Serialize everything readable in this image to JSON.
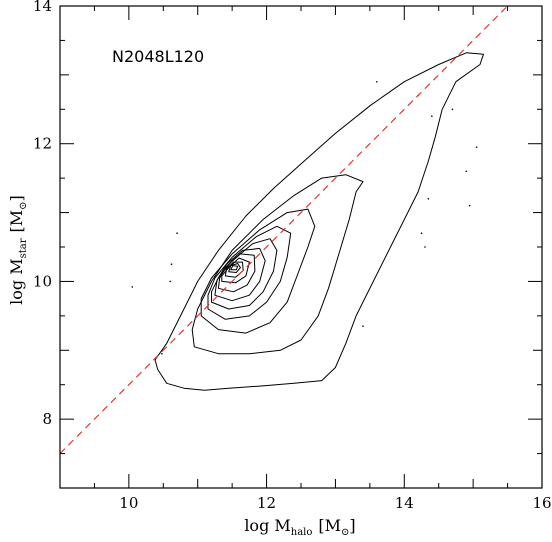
{
  "chart_data": {
    "type": "contour",
    "annotation": "N2048L120",
    "xlabel": {
      "main": "log M",
      "sub": "halo",
      "unit": "[M",
      "unit_sub": "⊙",
      "unit_close": "]"
    },
    "ylabel": {
      "main": "log M",
      "sub": "star",
      "unit": "[M",
      "unit_sub": "⊙",
      "unit_close": "]"
    },
    "xlim": [
      9,
      16
    ],
    "ylim": [
      7,
      14
    ],
    "xticks": [
      10,
      12,
      14,
      16
    ],
    "yticks": [
      8,
      10,
      12,
      14
    ],
    "x_minor_step": 0.5,
    "y_minor_step": 0.5,
    "reference_line": {
      "slope": 1,
      "intercept": -1.5,
      "style": "dashed",
      "color": "#e8322a"
    },
    "contours": [
      {
        "level": 1,
        "points": [
          [
            10.38,
            8.86
          ],
          [
            10.42,
            8.72
          ],
          [
            10.55,
            8.52
          ],
          [
            10.8,
            8.45
          ],
          [
            11.1,
            8.42
          ],
          [
            11.45,
            8.45
          ],
          [
            11.9,
            8.48
          ],
          [
            12.4,
            8.52
          ],
          [
            12.8,
            8.56
          ],
          [
            13.0,
            8.75
          ],
          [
            13.15,
            9.1
          ],
          [
            13.3,
            9.5
          ],
          [
            13.55,
            10.0
          ],
          [
            13.8,
            10.5
          ],
          [
            14.0,
            10.9
          ],
          [
            14.2,
            11.3
          ],
          [
            14.35,
            11.75
          ],
          [
            14.45,
            12.1
          ],
          [
            14.55,
            12.5
          ],
          [
            14.75,
            12.9
          ],
          [
            15.1,
            13.15
          ],
          [
            15.15,
            13.3
          ],
          [
            14.9,
            13.32
          ],
          [
            14.5,
            13.15
          ],
          [
            14.0,
            12.9
          ],
          [
            13.5,
            12.55
          ],
          [
            13.0,
            12.15
          ],
          [
            12.55,
            11.75
          ],
          [
            12.1,
            11.35
          ],
          [
            11.7,
            10.95
          ],
          [
            11.3,
            10.45
          ],
          [
            11.0,
            10.0
          ],
          [
            10.75,
            9.5
          ],
          [
            10.55,
            9.1
          ],
          [
            10.38,
            8.86
          ]
        ]
      },
      {
        "level": 2,
        "points": [
          [
            10.95,
            9.05
          ],
          [
            11.3,
            8.95
          ],
          [
            11.75,
            8.95
          ],
          [
            12.2,
            9.0
          ],
          [
            12.5,
            9.15
          ],
          [
            12.75,
            9.5
          ],
          [
            12.9,
            9.9
          ],
          [
            13.05,
            10.4
          ],
          [
            13.2,
            10.9
          ],
          [
            13.3,
            11.3
          ],
          [
            13.4,
            11.45
          ],
          [
            13.15,
            11.55
          ],
          [
            12.8,
            11.5
          ],
          [
            12.4,
            11.25
          ],
          [
            11.95,
            10.9
          ],
          [
            11.5,
            10.45
          ],
          [
            11.2,
            10.0
          ],
          [
            11.0,
            9.6
          ],
          [
            10.92,
            9.3
          ],
          [
            10.95,
            9.05
          ]
        ]
      },
      {
        "level": 3,
        "points": [
          [
            11.05,
            9.5
          ],
          [
            11.3,
            9.3
          ],
          [
            11.7,
            9.25
          ],
          [
            12.05,
            9.4
          ],
          [
            12.3,
            9.7
          ],
          [
            12.45,
            10.1
          ],
          [
            12.6,
            10.5
          ],
          [
            12.7,
            10.8
          ],
          [
            12.6,
            11.05
          ],
          [
            12.3,
            11.0
          ],
          [
            11.9,
            10.75
          ],
          [
            11.5,
            10.4
          ],
          [
            11.2,
            10.05
          ],
          [
            11.05,
            9.75
          ],
          [
            11.05,
            9.5
          ]
        ]
      },
      {
        "level": 4,
        "points": [
          [
            11.15,
            9.6
          ],
          [
            11.4,
            9.45
          ],
          [
            11.75,
            9.5
          ],
          [
            12.0,
            9.7
          ],
          [
            12.2,
            10.0
          ],
          [
            12.3,
            10.35
          ],
          [
            12.35,
            10.7
          ],
          [
            12.15,
            10.8
          ],
          [
            11.85,
            10.65
          ],
          [
            11.5,
            10.35
          ],
          [
            11.25,
            10.05
          ],
          [
            11.15,
            9.8
          ],
          [
            11.15,
            9.6
          ]
        ]
      },
      {
        "level": 5,
        "points": [
          [
            11.2,
            9.7
          ],
          [
            11.45,
            9.6
          ],
          [
            11.75,
            9.65
          ],
          [
            11.95,
            9.85
          ],
          [
            12.1,
            10.15
          ],
          [
            12.15,
            10.45
          ],
          [
            12.05,
            10.62
          ],
          [
            11.8,
            10.55
          ],
          [
            11.5,
            10.3
          ],
          [
            11.3,
            10.05
          ],
          [
            11.2,
            9.85
          ],
          [
            11.2,
            9.7
          ]
        ]
      },
      {
        "level": 6,
        "points": [
          [
            11.25,
            9.8
          ],
          [
            11.5,
            9.72
          ],
          [
            11.75,
            9.8
          ],
          [
            11.9,
            10.0
          ],
          [
            11.98,
            10.3
          ],
          [
            11.9,
            10.48
          ],
          [
            11.65,
            10.45
          ],
          [
            11.42,
            10.25
          ],
          [
            11.28,
            10.02
          ],
          [
            11.25,
            9.8
          ]
        ]
      },
      {
        "level": 7,
        "points": [
          [
            11.3,
            9.9
          ],
          [
            11.52,
            9.85
          ],
          [
            11.72,
            9.95
          ],
          [
            11.83,
            10.15
          ],
          [
            11.82,
            10.38
          ],
          [
            11.62,
            10.4
          ],
          [
            11.42,
            10.22
          ],
          [
            11.32,
            10.05
          ],
          [
            11.3,
            9.9
          ]
        ]
      },
      {
        "level": 8,
        "points": [
          [
            11.35,
            10.0
          ],
          [
            11.55,
            9.98
          ],
          [
            11.7,
            10.08
          ],
          [
            11.75,
            10.28
          ],
          [
            11.6,
            10.34
          ],
          [
            11.45,
            10.2
          ],
          [
            11.35,
            10.08
          ],
          [
            11.35,
            10.0
          ]
        ]
      },
      {
        "level": 9,
        "points": [
          [
            11.4,
            10.08
          ],
          [
            11.55,
            10.06
          ],
          [
            11.66,
            10.16
          ],
          [
            11.65,
            10.28
          ],
          [
            11.52,
            10.28
          ],
          [
            11.42,
            10.18
          ],
          [
            11.4,
            10.08
          ]
        ]
      },
      {
        "level": 10,
        "points": [
          [
            11.45,
            10.14
          ],
          [
            11.56,
            10.13
          ],
          [
            11.62,
            10.2
          ],
          [
            11.58,
            10.26
          ],
          [
            11.48,
            10.23
          ],
          [
            11.45,
            10.14
          ]
        ]
      },
      {
        "level": 11,
        "points": [
          [
            11.48,
            10.17
          ],
          [
            11.56,
            10.17
          ],
          [
            11.58,
            10.22
          ],
          [
            11.51,
            10.23
          ],
          [
            11.48,
            10.17
          ]
        ]
      }
    ],
    "outlier_points": [
      [
        10.05,
        9.92
      ],
      [
        10.6,
        10.0
      ],
      [
        10.62,
        10.25
      ],
      [
        10.7,
        10.7
      ],
      [
        10.48,
        8.95
      ],
      [
        13.4,
        9.35
      ],
      [
        14.25,
        10.7
      ],
      [
        14.3,
        10.5
      ],
      [
        14.35,
        11.2
      ],
      [
        14.9,
        11.6
      ],
      [
        15.05,
        11.95
      ],
      [
        14.7,
        12.5
      ],
      [
        14.2,
        12.7
      ],
      [
        13.6,
        12.9
      ],
      [
        14.4,
        12.4
      ],
      [
        14.95,
        11.1
      ]
    ]
  }
}
